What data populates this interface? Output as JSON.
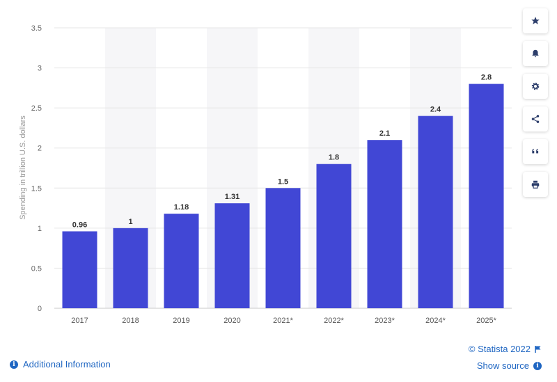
{
  "chart_data": {
    "type": "bar",
    "categories": [
      "2017",
      "2018",
      "2019",
      "2020",
      "2021*",
      "2022*",
      "2023*",
      "2024*",
      "2025*"
    ],
    "values": [
      0.96,
      1,
      1.18,
      1.31,
      1.5,
      1.8,
      2.1,
      2.4,
      2.8
    ],
    "value_labels": [
      "0.96",
      "1",
      "1.18",
      "1.31",
      "1.5",
      "1.8",
      "2.1",
      "2.4",
      "2.8"
    ],
    "ylabel": "Spending in trillion U.S. dollars",
    "xlabel": "",
    "ylim": [
      0,
      3.5
    ],
    "yticks": [
      "0",
      "0.5",
      "1",
      "1.5",
      "2",
      "2.5",
      "3",
      "3.5"
    ],
    "grid": true,
    "bar_color": "#4147d5"
  },
  "toolbar": {
    "buttons": [
      {
        "icon": "star-icon",
        "name": "favorite-button"
      },
      {
        "icon": "bell-icon",
        "name": "notification-button"
      },
      {
        "icon": "gear-icon",
        "name": "settings-button"
      },
      {
        "icon": "share-icon",
        "name": "share-button"
      },
      {
        "icon": "quote-icon",
        "name": "cite-button"
      },
      {
        "icon": "printer-icon",
        "name": "print-button"
      }
    ]
  },
  "footer": {
    "copyright": "© Statista 2022",
    "show_source": "Show source",
    "additional_info": "Additional Information",
    "link_color": "#1f66c2"
  }
}
